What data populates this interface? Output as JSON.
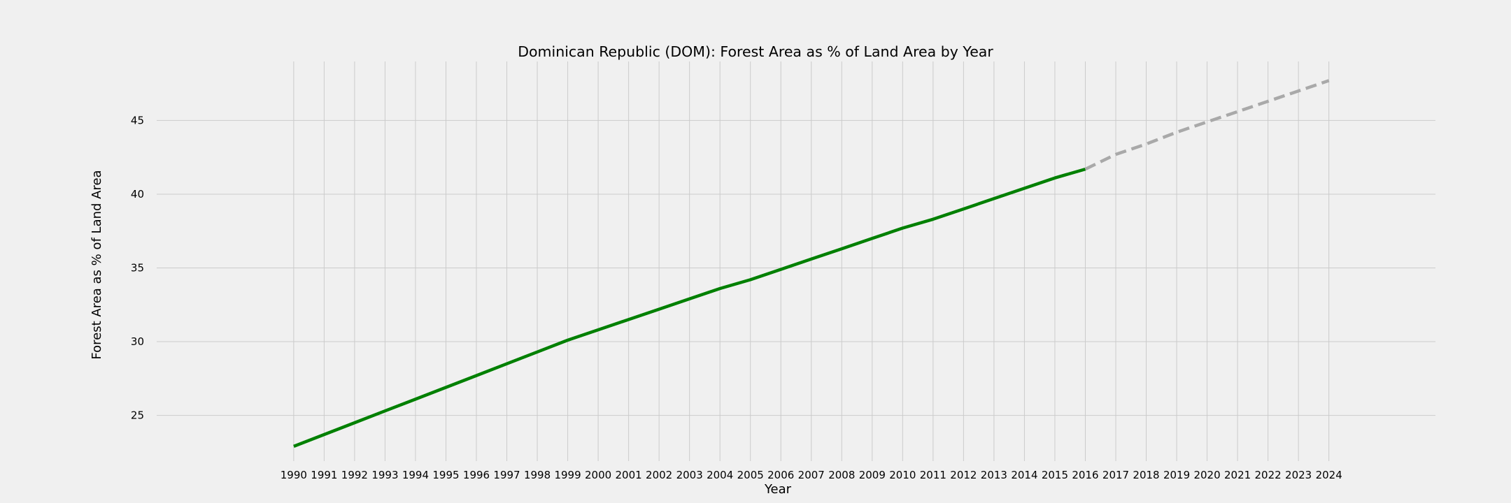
{
  "chart_data": {
    "type": "line",
    "title": "Dominican Republic (DOM): Forest Area as % of Land Area by Year",
    "xlabel": "Year",
    "ylabel": "Forest Area as % of Land Area",
    "xlim": [
      1985.5,
      2027.5
    ],
    "ylim": [
      21.9,
      49.0
    ],
    "yticks": [
      25,
      30,
      35,
      40,
      45
    ],
    "xticks": [
      "1990",
      "1991",
      "1992",
      "1993",
      "1994",
      "1995",
      "1996",
      "1997",
      "1998",
      "1999",
      "2000",
      "2001",
      "2002",
      "2003",
      "2004",
      "2005",
      "2006",
      "2007",
      "2008",
      "2009",
      "2010",
      "2011",
      "2012",
      "2013",
      "2014",
      "2015",
      "2016",
      "2017",
      "2018",
      "2019",
      "2020",
      "2021",
      "2022",
      "2023",
      "2024"
    ],
    "grid": true,
    "series": [
      {
        "style": "solid",
        "color": "#008000",
        "x": [
          1990,
          1991,
          1992,
          1993,
          1994,
          1995,
          1996,
          1997,
          1998,
          1999,
          2000,
          2001,
          2002,
          2003,
          2004,
          2005,
          2006,
          2007,
          2008,
          2009,
          2010,
          2011,
          2012,
          2013,
          2014,
          2015,
          2016
        ],
        "values": [
          22.9,
          23.7,
          24.5,
          25.3,
          26.1,
          26.9,
          27.7,
          28.5,
          29.3,
          30.1,
          30.8,
          31.5,
          32.2,
          32.9,
          33.6,
          34.2,
          34.9,
          35.6,
          36.3,
          37.0,
          37.7,
          38.3,
          39.0,
          39.7,
          40.4,
          41.1,
          41.7
        ]
      },
      {
        "style": "dashed",
        "color": "#a9a9a9",
        "x": [
          2016,
          2017,
          2018,
          2019,
          2020,
          2021,
          2022,
          2023,
          2024
        ],
        "values": [
          41.7,
          42.7,
          43.4,
          44.2,
          44.9,
          45.6,
          46.3,
          47.0,
          47.7
        ]
      }
    ]
  }
}
